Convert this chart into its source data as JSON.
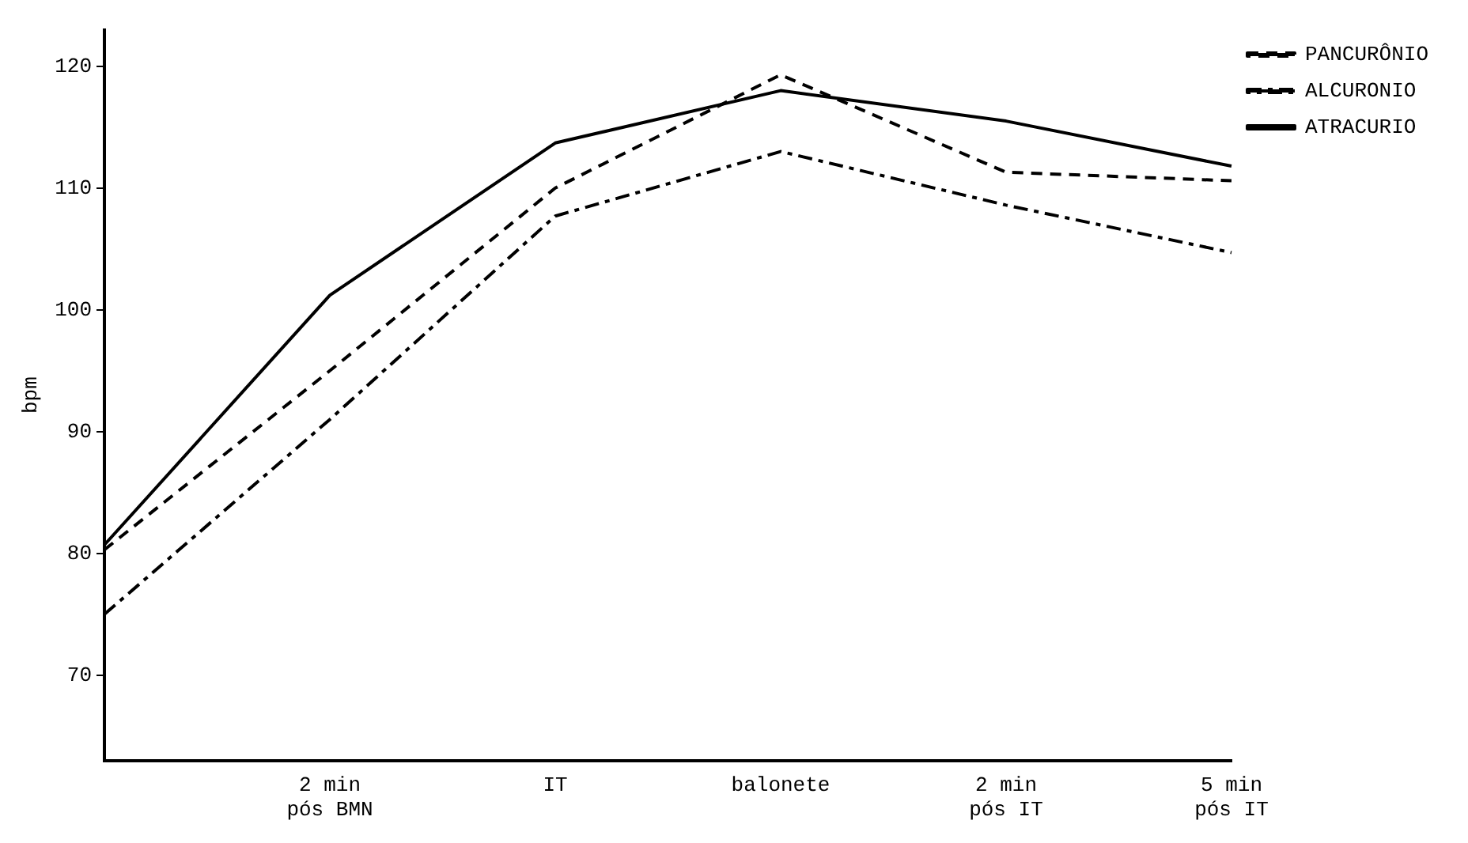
{
  "chart_data": {
    "type": "line",
    "ylabel": "bpm",
    "categories": [
      null,
      "2 min pós BMN",
      "IT",
      "balonete",
      "2 min pós IT",
      "5 min pós IT"
    ],
    "series": [
      {
        "name": "PANCURÔNIO",
        "color": "#000000",
        "line_style": "dashed",
        "values": [
          80.3,
          95,
          110,
          119.3,
          111.3,
          110.6
        ]
      },
      {
        "name": "ALCURONIO",
        "color": "#000000",
        "line_style": "dotted",
        "values": [
          75,
          91,
          107.7,
          113,
          108.6,
          104.7
        ]
      },
      {
        "name": "ATRACURIO",
        "color": "#000000",
        "line_style": "solid",
        "values": [
          80.7,
          101.2,
          113.7,
          118,
          115.5,
          111.8
        ]
      }
    ],
    "ylim": [
      63,
      123
    ],
    "yticks": [
      70,
      80,
      90,
      100,
      110,
      120
    ],
    "grid": false,
    "legend": "top right",
    "marker": "none"
  }
}
